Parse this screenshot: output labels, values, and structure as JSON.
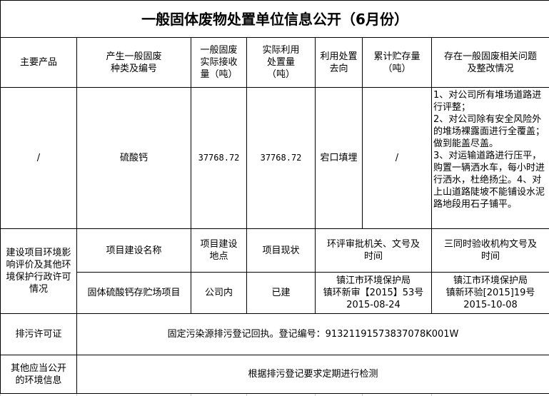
{
  "title": "一般固体废物处置单位信息公开（6月份）",
  "headers": [
    "主要产品",
    "产生一般固废\n种类及编号",
    "一般固废\n实际接收\n量（吨）",
    "实际利用\n处置量\n（吨）",
    "利用处置\n去向",
    "累计贮存量\n（吨）",
    "存在一般固废相关问题\n及整改情况"
  ],
  "waste_row": {
    "product": "/",
    "type": "硫酸钙",
    "received": "37768.72",
    "disposed": "37768.72",
    "destination": "宕口填埋",
    "stored": "/",
    "issues": "1、对公司所有堆场道路进行评整；\n2、对公司除有安全风险外的堆场裸露面进行全覆盖；做到能盖尽盖。\n3、对运输道路进行压平，购置一辆洒水车，每小时进行洒水，杜绝扬尘。4、对上山道路陡坡不能铺设水泥路地段用石子铺平。"
  },
  "project": {
    "label": "建设项目环境影响评价及其他环境保护行政许可情况",
    "headers": [
      "项目建设名称",
      "项目建设\n地点",
      "项目现状",
      "环评审批机关、文号及\n时间",
      "三同时验收机构文号及\n时间"
    ],
    "values": [
      "固体硫酸钙存贮场项目",
      "公司内",
      "已建",
      "镇江市环境保护局\n镇环新审【2015】53号\n2015-08-24",
      "镇江市环境保护局\n镇新环验[2015]19号\n2015-10-08"
    ]
  },
  "permit": {
    "label": "排污许可证",
    "value": "固定污染源排污登记回执。登记编号：91321191573837078K001W"
  },
  "other": {
    "label": "其他应当公开\n的环境信息",
    "value": "根据排污登记要求定期进行检测"
  }
}
